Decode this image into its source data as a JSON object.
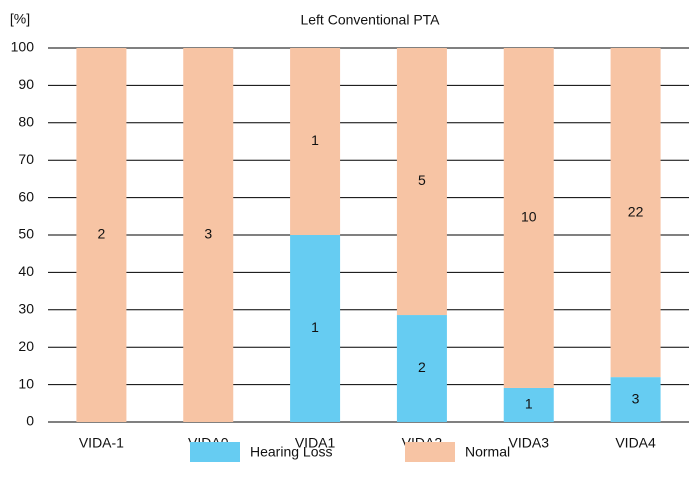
{
  "chart_data": {
    "type": "stacked-bar",
    "title": "Left Conventional PTA",
    "y_label": "[%]",
    "categories": [
      "VIDA-1",
      "VIDA0",
      "VIDA1",
      "VIDA2",
      "VIDA3",
      "VIDA4"
    ],
    "series": [
      {
        "name": "Hearing Loss",
        "color": "#66ccf2",
        "values": [
          0,
          0,
          50,
          28.6,
          9.1,
          12
        ],
        "counts": [
          0,
          0,
          1,
          2,
          1,
          3
        ]
      },
      {
        "name": "Normal",
        "color": "#f7c4a4",
        "values": [
          100,
          100,
          50,
          71.4,
          90.9,
          88
        ],
        "counts": [
          2,
          3,
          1,
          5,
          10,
          22
        ]
      }
    ],
    "ylim": [
      0,
      100
    ],
    "yticks": [
      0,
      10,
      20,
      30,
      40,
      50,
      60,
      70,
      80,
      90,
      100
    ],
    "grid": true
  }
}
